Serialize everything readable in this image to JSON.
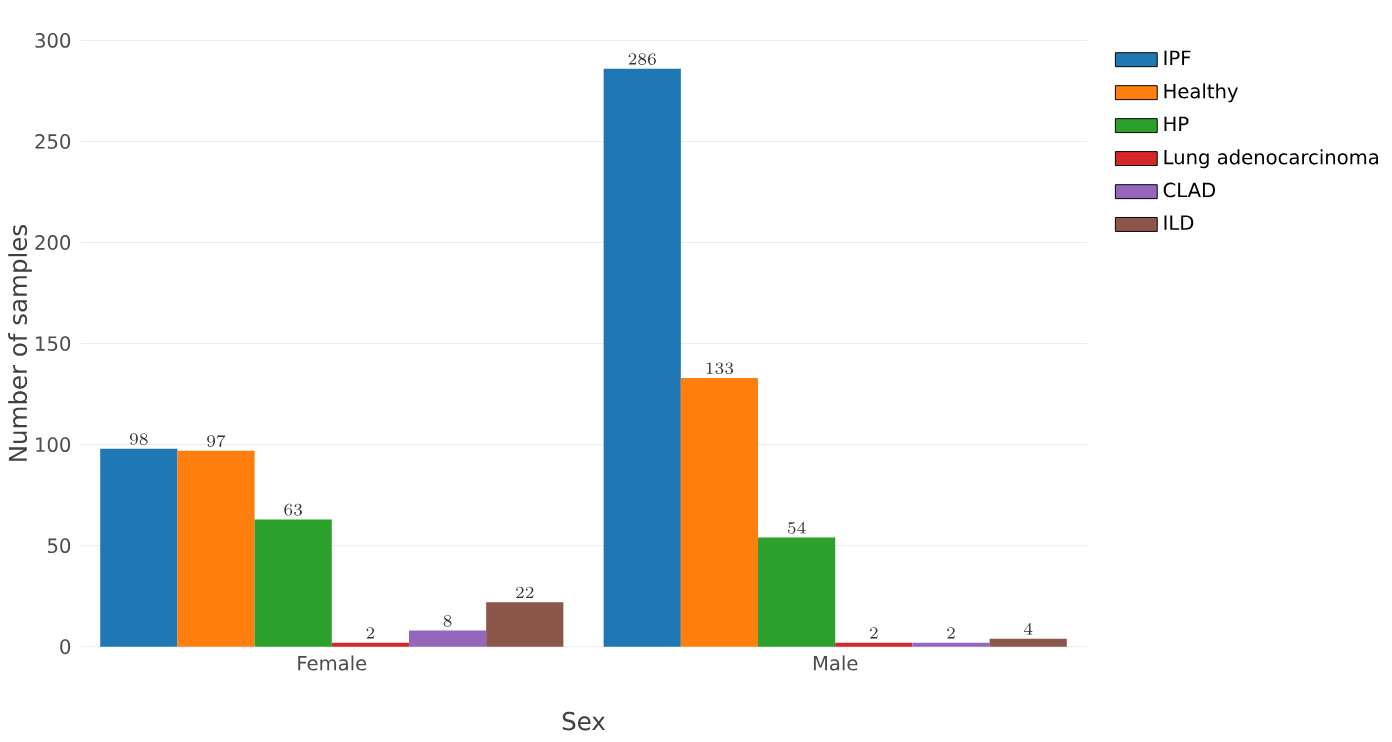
{
  "chart_data": {
    "type": "bar",
    "xlabel": "Sex",
    "ylabel": "Number of samples",
    "categories": [
      "Female",
      "Male"
    ],
    "series": [
      {
        "name": "IPF",
        "color": "#1f77b4",
        "values": [
          98,
          286
        ]
      },
      {
        "name": "Healthy",
        "color": "#ff7f0e",
        "values": [
          97,
          133
        ]
      },
      {
        "name": "HP",
        "color": "#2ca02c",
        "values": [
          63,
          54
        ]
      },
      {
        "name": "Lung adenocarcinoma",
        "color": "#d62728",
        "values": [
          2,
          2
        ]
      },
      {
        "name": "CLAD",
        "color": "#9467bd",
        "values": [
          8,
          2
        ]
      },
      {
        "name": "ILD",
        "color": "#8c564b",
        "values": [
          22,
          4
        ]
      }
    ],
    "ylim": [
      0,
      300
    ],
    "yticks": [
      0,
      50,
      100,
      150,
      200,
      250,
      300
    ],
    "grid": "y",
    "legend": "top right",
    "data_labels": true
  }
}
